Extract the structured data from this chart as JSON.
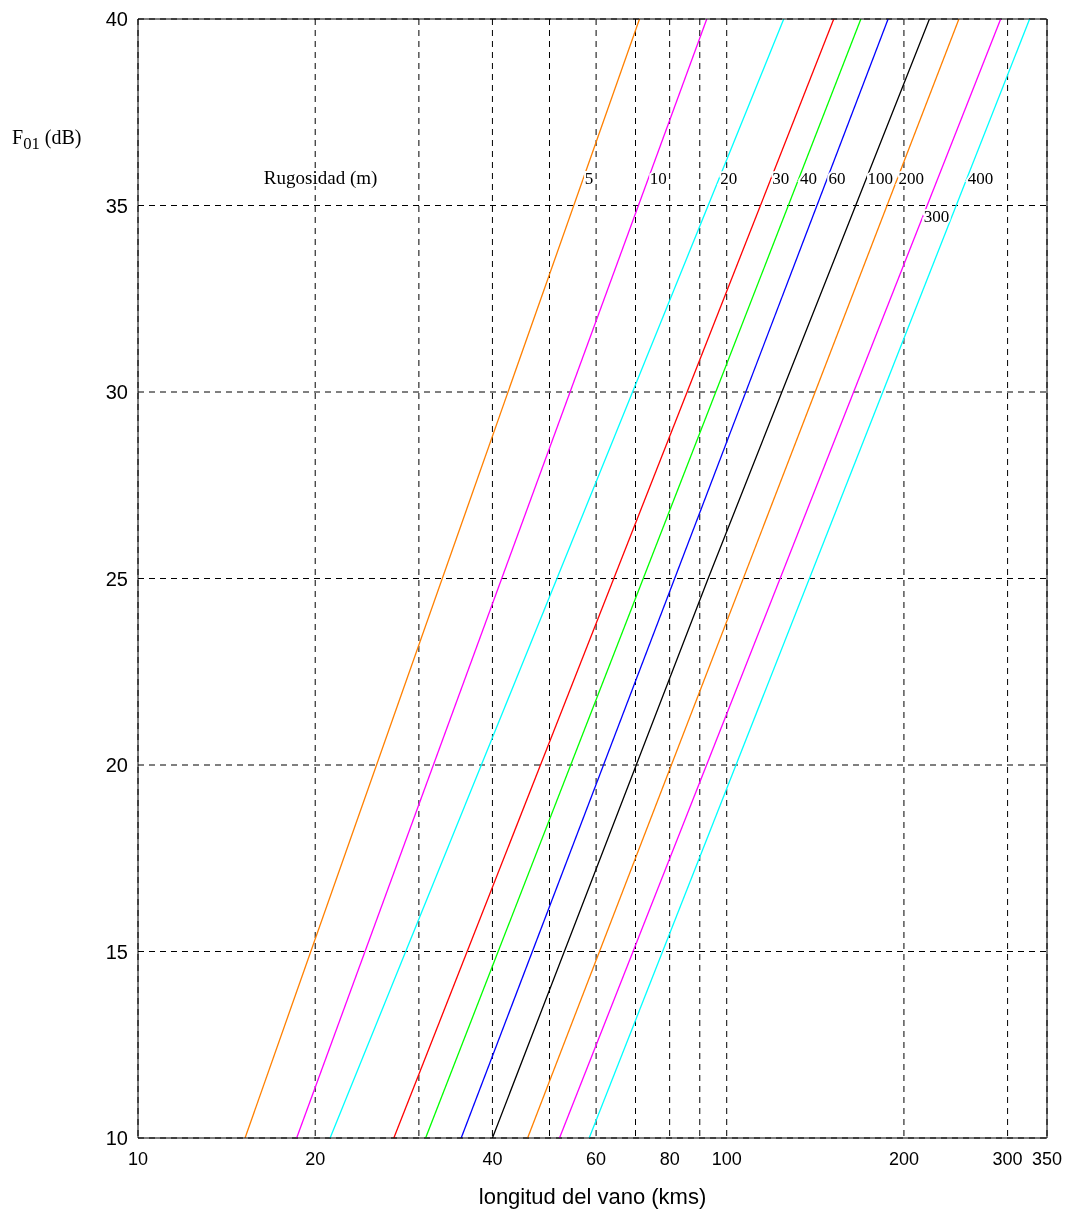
{
  "chart_data": {
    "type": "line",
    "xlabel": "longitud del vano (kms)",
    "ylabel": "F$_{01}$ (dB)",
    "log": "x",
    "grid": true,
    "marker": "none",
    "line_style": "solid",
    "xlim": [
      10,
      350
    ],
    "xticks": [
      10,
      20,
      {
        "value": 30,
        "label": null
      },
      40,
      {
        "value": 50,
        "label": null
      },
      60,
      {
        "value": 70,
        "label": null
      },
      80,
      {
        "value": 90,
        "label": null
      },
      100,
      200,
      300,
      350
    ],
    "ylim": [
      10,
      40
    ],
    "yticks": [
      10,
      15,
      20,
      25,
      30,
      35,
      40
    ],
    "series": [
      {
        "name": "5",
        "color": "#ff8000",
        "x": [
          15.2,
          71.1
        ],
        "values": [
          10,
          40
        ]
      },
      {
        "name": "10",
        "color": "#ff00ff",
        "x": [
          18.6,
          92.5
        ],
        "values": [
          10,
          40
        ]
      },
      {
        "name": "20",
        "color": "#00ffff",
        "x": [
          21.2,
          125
        ],
        "values": [
          10,
          40
        ]
      },
      {
        "name": "30",
        "color": "#ff0000",
        "x": [
          27.2,
          152
        ],
        "values": [
          10,
          40
        ]
      },
      {
        "name": "40",
        "color": "#00ff00",
        "x": [
          30.8,
          169
        ],
        "values": [
          10,
          40
        ]
      },
      {
        "name": "60",
        "color": "#0000ff",
        "x": [
          35.4,
          188
        ],
        "values": [
          10,
          40
        ]
      },
      {
        "name": "100",
        "color": "#000000",
        "x": [
          40,
          93,
          221
        ],
        "values": [
          10,
          25,
          40
        ]
      },
      {
        "name": "200",
        "color": "#ff8000",
        "x": [
          45.9,
          248
        ],
        "values": [
          10,
          40
        ]
      },
      {
        "name": "300",
        "color": "#ff00ff",
        "x": [
          52,
          292
        ],
        "values": [
          10,
          40
        ]
      },
      {
        "name": "400",
        "color": "#00ffff",
        "x": [
          58.4,
          327
        ],
        "values": [
          10,
          40
        ]
      }
    ],
    "legend_title": "Rugosidad (m)"
  }
}
